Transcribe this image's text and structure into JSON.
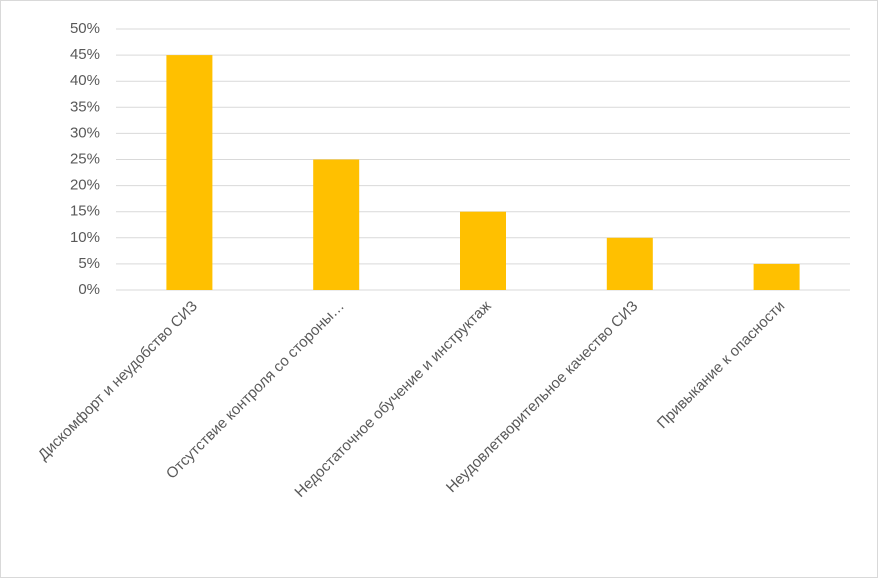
{
  "chart_data": {
    "type": "bar",
    "categories": [
      "Дискомфорт и неудобство СИЗ",
      "Отсутствие контроля со стороны…",
      "Недостаточное обучение и инструктаж",
      "Неудовлетворительное качество СИЗ",
      "Привыкание к опасности"
    ],
    "values": [
      45,
      25,
      15,
      10,
      5
    ],
    "color": "#ffc000",
    "ylim": [
      0,
      50
    ],
    "yticks": [
      {
        "value": 0,
        "label": "0%"
      },
      {
        "value": 5,
        "label": "5%"
      },
      {
        "value": 10,
        "label": "10%"
      },
      {
        "value": 15,
        "label": "15%"
      },
      {
        "value": 20,
        "label": "20%"
      },
      {
        "value": 25,
        "label": "25%"
      },
      {
        "value": 30,
        "label": "30%"
      },
      {
        "value": 35,
        "label": "35%"
      },
      {
        "value": 40,
        "label": "40%"
      },
      {
        "value": 45,
        "label": "45%"
      },
      {
        "value": 50,
        "label": "50%"
      }
    ],
    "grid": true
  }
}
